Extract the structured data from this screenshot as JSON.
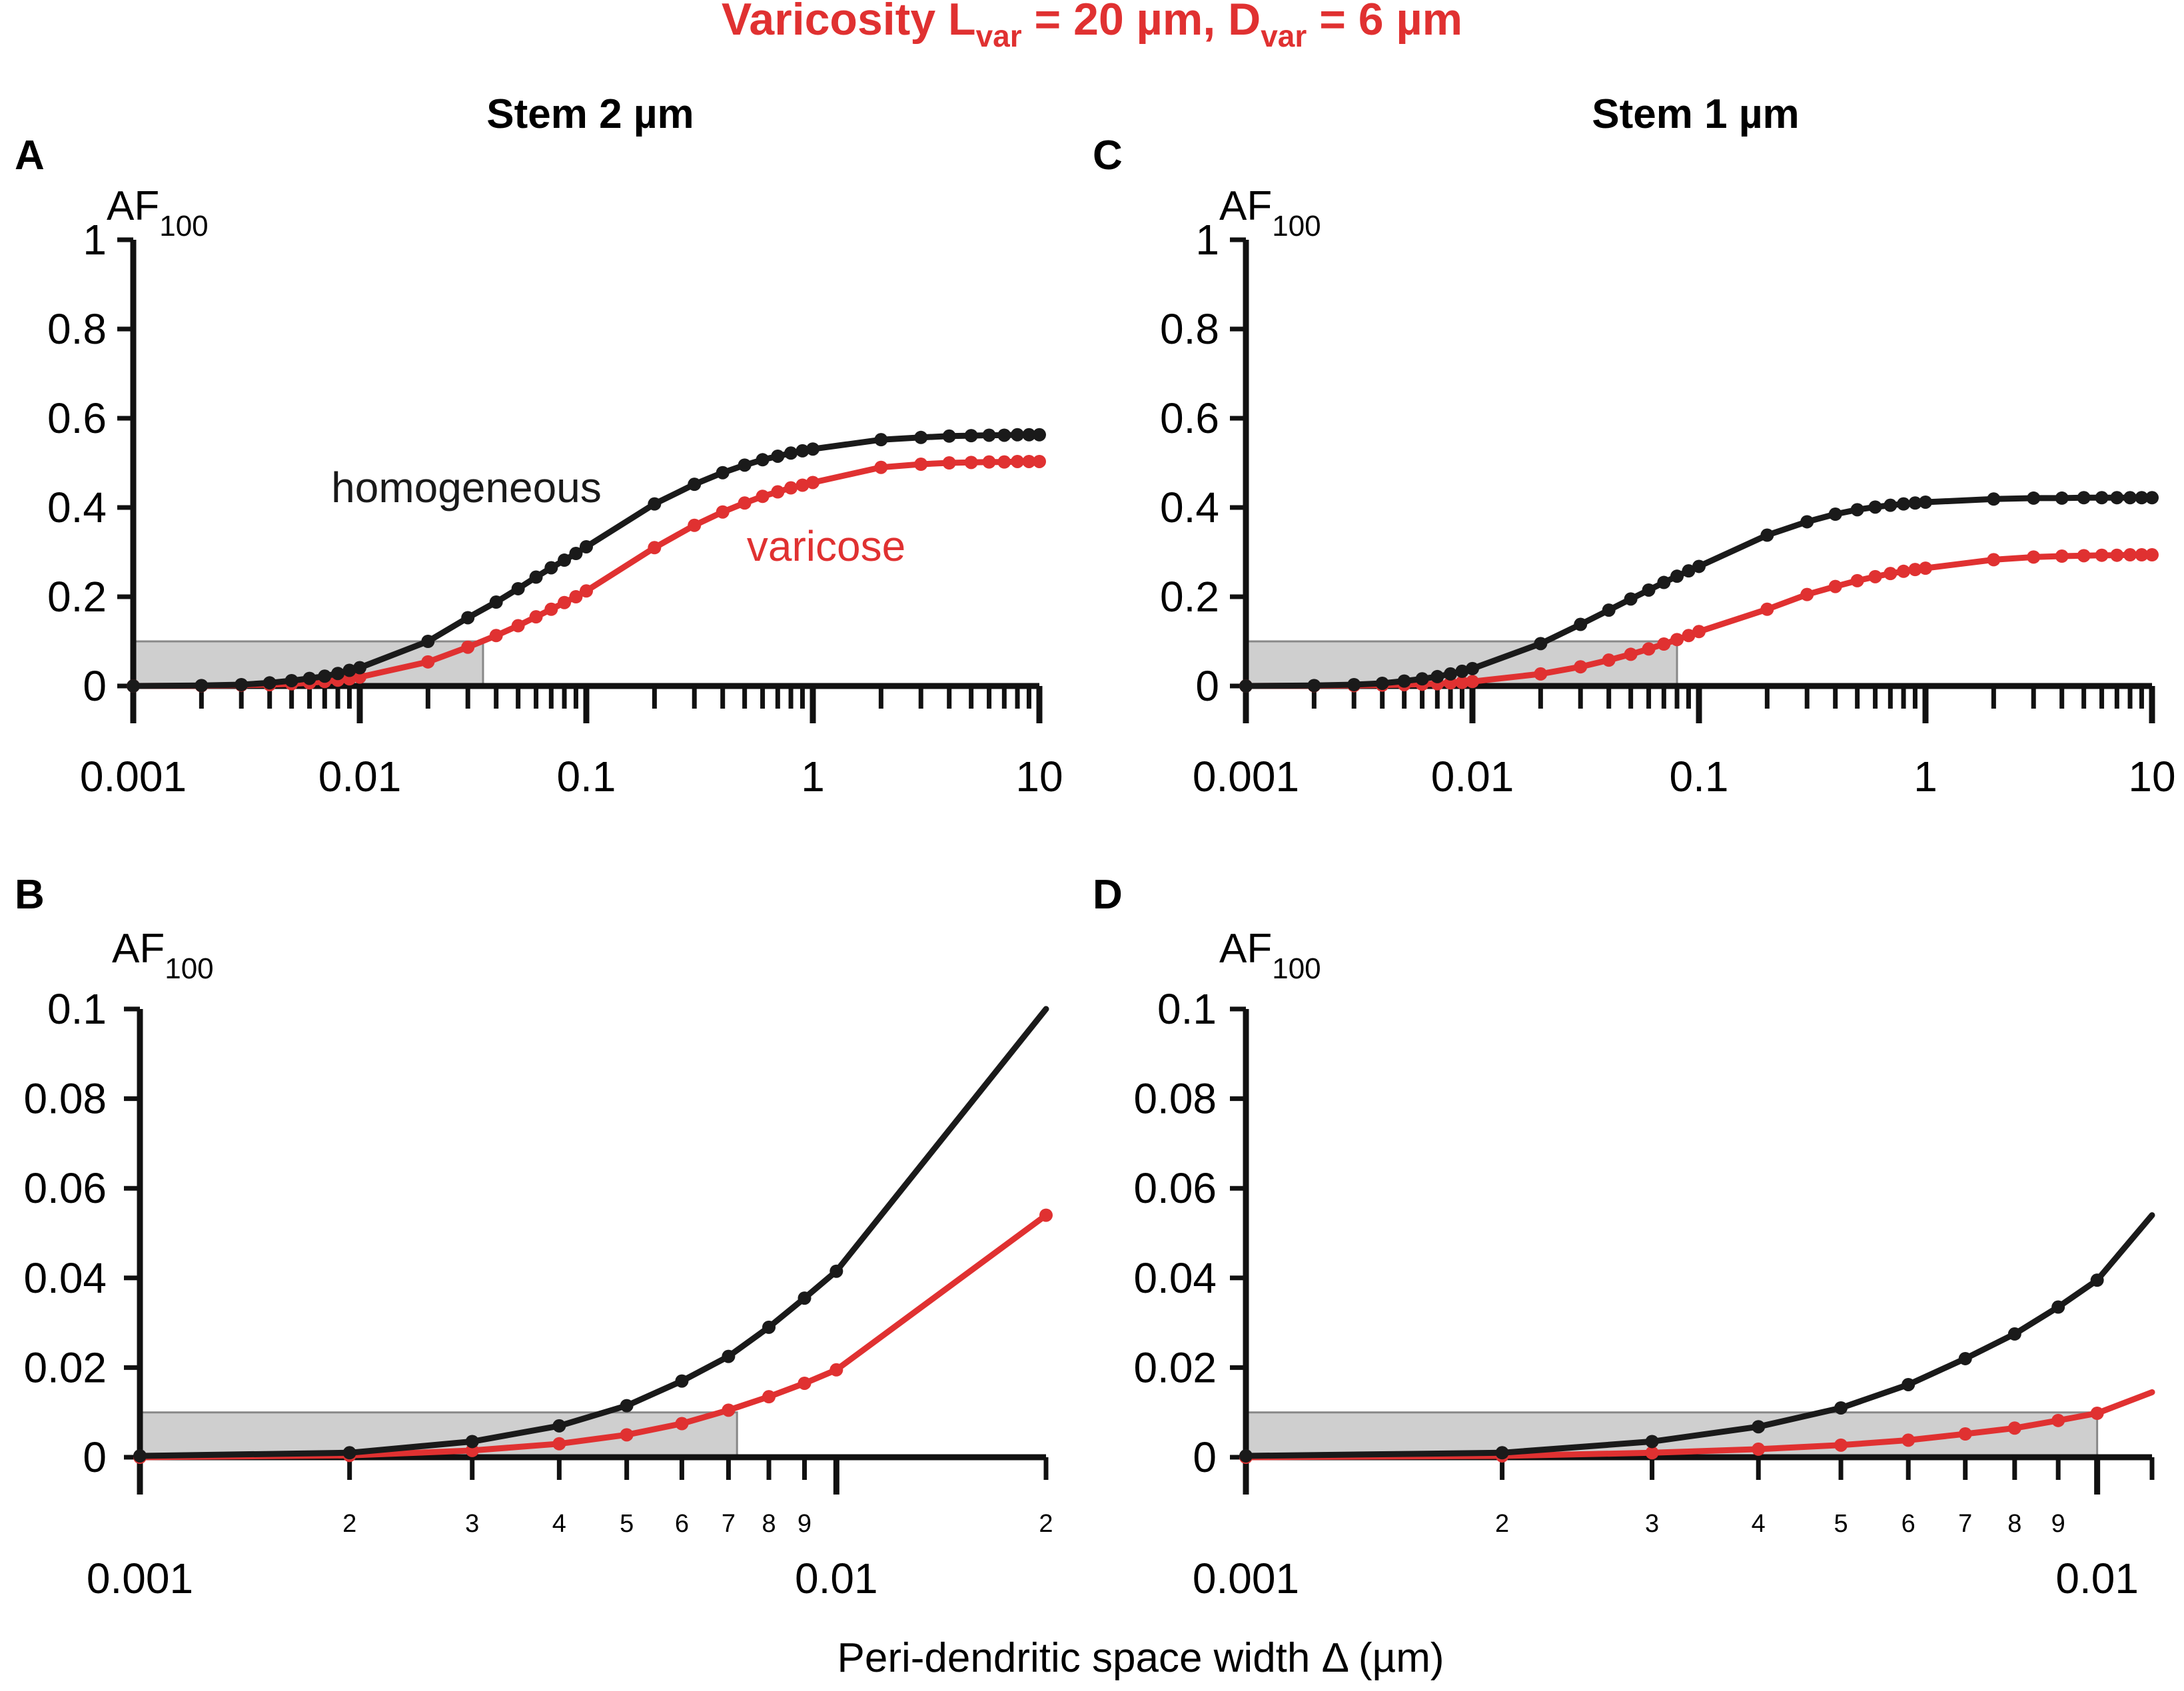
{
  "figure_title": {
    "main": "Varicosity L",
    "sub1": "var",
    "mid": " = 20 µm,  D",
    "sub2": "var",
    "end": " = 6 µm"
  },
  "columns": [
    {
      "title": "Stem 2 µm"
    },
    {
      "title": "Stem 1 µm"
    }
  ],
  "xlabel": "Peri-dendritic space width  Δ  (µm)",
  "legend": {
    "homogeneous": "homogeneous",
    "varicose": "varicose"
  },
  "colors": {
    "homogeneous": "#1a1a1a",
    "varicose": "#e03131",
    "shade_fill": "#cfcfcf",
    "shade_stroke": "#888888"
  },
  "chart_data": [
    {
      "panel": "A",
      "type": "line",
      "scale": "log",
      "ylabel_main": "AF",
      "ylabel_sub": "100",
      "xlim": [
        0.001,
        10
      ],
      "ylim": [
        0,
        1
      ],
      "xticks": [
        {
          "value": 0.001,
          "label": "0.001"
        },
        {
          "value": 0.01,
          "label": "0.01"
        },
        {
          "value": 0.1,
          "label": "0.1"
        },
        {
          "value": 1,
          "label": "1"
        },
        {
          "value": 10,
          "label": "10"
        }
      ],
      "yticks": [
        {
          "value": 0,
          "label": "0"
        },
        {
          "value": 0.2,
          "label": "0.2"
        },
        {
          "value": 0.4,
          "label": "0.4"
        },
        {
          "value": 0.6,
          "label": "0.6"
        },
        {
          "value": 0.8,
          "label": "0.8"
        },
        {
          "value": 1,
          "label": "1"
        }
      ],
      "shaded_region": {
        "x": [
          0.001,
          0.035
        ],
        "y": [
          0,
          0.1
        ]
      },
      "series": [
        {
          "name": "homogeneous",
          "x": [
            0.001,
            0.002,
            0.003,
            0.004,
            0.005,
            0.006,
            0.007,
            0.008,
            0.009,
            0.01,
            0.02,
            0.03,
            0.04,
            0.05,
            0.06,
            0.07,
            0.08,
            0.09,
            0.1,
            0.2,
            0.3,
            0.4,
            0.5,
            0.6,
            0.7,
            0.8,
            0.9,
            1,
            2,
            3,
            4,
            5,
            6,
            7,
            8,
            9,
            10
          ],
          "y": [
            0,
            0.001,
            0.003,
            0.007,
            0.012,
            0.017,
            0.022,
            0.028,
            0.035,
            0.041,
            0.1,
            0.153,
            0.188,
            0.218,
            0.244,
            0.265,
            0.282,
            0.297,
            0.312,
            0.408,
            0.452,
            0.478,
            0.495,
            0.507,
            0.515,
            0.522,
            0.527,
            0.531,
            0.552,
            0.557,
            0.56,
            0.561,
            0.562,
            0.562,
            0.563,
            0.563,
            0.563
          ]
        },
        {
          "name": "varicose",
          "x": [
            0.001,
            0.002,
            0.003,
            0.004,
            0.005,
            0.006,
            0.007,
            0.008,
            0.009,
            0.01,
            0.02,
            0.03,
            0.04,
            0.05,
            0.06,
            0.07,
            0.08,
            0.09,
            0.1,
            0.2,
            0.3,
            0.4,
            0.5,
            0.6,
            0.7,
            0.8,
            0.9,
            1,
            2,
            3,
            4,
            5,
            6,
            7,
            8,
            9,
            10
          ],
          "y": [
            0,
            0.0005,
            0.002,
            0.003,
            0.005,
            0.007,
            0.01,
            0.013,
            0.016,
            0.02,
            0.054,
            0.087,
            0.113,
            0.135,
            0.155,
            0.172,
            0.187,
            0.2,
            0.213,
            0.31,
            0.36,
            0.39,
            0.41,
            0.425,
            0.435,
            0.444,
            0.45,
            0.456,
            0.49,
            0.497,
            0.5,
            0.501,
            0.502,
            0.502,
            0.503,
            0.503,
            0.503
          ]
        }
      ],
      "annotations": [
        {
          "text": "homogeneous",
          "series": "homogeneous"
        },
        {
          "text": "varicose",
          "series": "varicose"
        }
      ]
    },
    {
      "panel": "C",
      "type": "line",
      "scale": "log",
      "ylabel_main": "AF",
      "ylabel_sub": "100",
      "xlim": [
        0.001,
        10
      ],
      "ylim": [
        0,
        1
      ],
      "xticks": [
        {
          "value": 0.001,
          "label": "0.001"
        },
        {
          "value": 0.01,
          "label": "0.01"
        },
        {
          "value": 0.1,
          "label": "0.1"
        },
        {
          "value": 1,
          "label": "1"
        },
        {
          "value": 10,
          "label": "10"
        }
      ],
      "yticks": [
        {
          "value": 0,
          "label": "0"
        },
        {
          "value": 0.2,
          "label": "0.2"
        },
        {
          "value": 0.4,
          "label": "0.4"
        },
        {
          "value": 0.6,
          "label": "0.6"
        },
        {
          "value": 0.8,
          "label": "0.8"
        },
        {
          "value": 1,
          "label": "1"
        }
      ],
      "shaded_region": {
        "x": [
          0.001,
          0.08
        ],
        "y": [
          0,
          0.1
        ]
      },
      "series": [
        {
          "name": "homogeneous",
          "x": [
            0.001,
            0.002,
            0.003,
            0.004,
            0.005,
            0.006,
            0.007,
            0.008,
            0.009,
            0.01,
            0.02,
            0.03,
            0.04,
            0.05,
            0.06,
            0.07,
            0.08,
            0.09,
            0.1,
            0.2,
            0.3,
            0.4,
            0.5,
            0.6,
            0.7,
            0.8,
            0.9,
            1,
            2,
            3,
            4,
            5,
            6,
            7,
            8,
            9,
            10
          ],
          "y": [
            0,
            0.001,
            0.003,
            0.006,
            0.011,
            0.016,
            0.021,
            0.027,
            0.033,
            0.039,
            0.095,
            0.138,
            0.17,
            0.195,
            0.215,
            0.232,
            0.246,
            0.258,
            0.268,
            0.338,
            0.368,
            0.385,
            0.395,
            0.401,
            0.405,
            0.408,
            0.41,
            0.412,
            0.419,
            0.421,
            0.421,
            0.422,
            0.422,
            0.422,
            0.422,
            0.422,
            0.422
          ]
        },
        {
          "name": "varicose",
          "x": [
            0.001,
            0.002,
            0.003,
            0.004,
            0.005,
            0.006,
            0.007,
            0.008,
            0.009,
            0.01,
            0.02,
            0.03,
            0.04,
            0.05,
            0.06,
            0.07,
            0.08,
            0.09,
            0.1,
            0.2,
            0.3,
            0.4,
            0.5,
            0.6,
            0.7,
            0.8,
            0.9,
            1,
            2,
            3,
            4,
            5,
            6,
            7,
            8,
            9,
            10
          ],
          "y": [
            0,
            0.0005,
            0.001,
            0.002,
            0.003,
            0.004,
            0.005,
            0.007,
            0.008,
            0.01,
            0.027,
            0.043,
            0.058,
            0.071,
            0.083,
            0.094,
            0.104,
            0.113,
            0.122,
            0.172,
            0.205,
            0.223,
            0.236,
            0.245,
            0.252,
            0.257,
            0.261,
            0.264,
            0.283,
            0.289,
            0.291,
            0.292,
            0.293,
            0.293,
            0.294,
            0.294,
            0.294
          ]
        }
      ]
    },
    {
      "panel": "B",
      "type": "line",
      "scale": "log",
      "ylabel_main": "AF",
      "ylabel_sub": "100",
      "xlim": [
        0.001,
        0.02
      ],
      "ylim": [
        0,
        0.1
      ],
      "xticks_minor": [
        {
          "value": 0.002,
          "label": "2"
        },
        {
          "value": 0.003,
          "label": "3"
        },
        {
          "value": 0.004,
          "label": "4"
        },
        {
          "value": 0.005,
          "label": "5"
        },
        {
          "value": 0.006,
          "label": "6"
        },
        {
          "value": 0.007,
          "label": "7"
        },
        {
          "value": 0.008,
          "label": "8"
        },
        {
          "value": 0.009,
          "label": "9"
        },
        {
          "value": 0.02,
          "label": "2"
        }
      ],
      "xticks": [
        {
          "value": 0.001,
          "label": "0.001"
        },
        {
          "value": 0.01,
          "label": "0.01"
        }
      ],
      "yticks": [
        {
          "value": 0,
          "label": "0"
        },
        {
          "value": 0.02,
          "label": "0.02"
        },
        {
          "value": 0.04,
          "label": "0.04"
        },
        {
          "value": 0.06,
          "label": "0.06"
        },
        {
          "value": 0.08,
          "label": "0.08"
        },
        {
          "value": 0.1,
          "label": "0.1"
        }
      ],
      "shaded_region": {
        "x": [
          0.001,
          0.0072
        ],
        "y": [
          0,
          0.01
        ]
      },
      "series": [
        {
          "name": "homogeneous",
          "x": [
            0.001,
            0.002,
            0.003,
            0.004,
            0.005,
            0.006,
            0.007,
            0.008,
            0.009,
            0.01,
            0.02
          ],
          "y": [
            0.0003,
            0.001,
            0.0035,
            0.007,
            0.0115,
            0.017,
            0.0225,
            0.029,
            0.0355,
            0.0415,
            0.1
          ],
          "markers_upto": 0.01
        },
        {
          "name": "varicose",
          "x": [
            0.001,
            0.002,
            0.003,
            0.004,
            0.005,
            0.006,
            0.007,
            0.008,
            0.009,
            0.01,
            0.02
          ],
          "y": [
            0,
            0.0004,
            0.0015,
            0.003,
            0.005,
            0.0075,
            0.0105,
            0.0135,
            0.0165,
            0.0195,
            0.054
          ],
          "markers_upto": 0.02
        }
      ]
    },
    {
      "panel": "D",
      "type": "line",
      "scale": "log",
      "ylabel_main": "AF",
      "ylabel_sub": "100",
      "xlim": [
        0.001,
        0.0116
      ],
      "ylim": [
        0,
        0.1
      ],
      "xticks_minor": [
        {
          "value": 0.002,
          "label": "2"
        },
        {
          "value": 0.003,
          "label": "3"
        },
        {
          "value": 0.004,
          "label": "4"
        },
        {
          "value": 0.005,
          "label": "5"
        },
        {
          "value": 0.006,
          "label": "6"
        },
        {
          "value": 0.007,
          "label": "7"
        },
        {
          "value": 0.008,
          "label": "8"
        },
        {
          "value": 0.009,
          "label": "9"
        }
      ],
      "xticks": [
        {
          "value": 0.001,
          "label": "0.001"
        },
        {
          "value": 0.01,
          "label": "0.01"
        }
      ],
      "yticks": [
        {
          "value": 0,
          "label": "0"
        },
        {
          "value": 0.02,
          "label": "0.02"
        },
        {
          "value": 0.04,
          "label": "0.04"
        },
        {
          "value": 0.06,
          "label": "0.06"
        },
        {
          "value": 0.08,
          "label": "0.08"
        },
        {
          "value": 0.1,
          "label": "0.1"
        }
      ],
      "shaded_region": {
        "x": [
          0.001,
          0.01
        ],
        "y": [
          0,
          0.01
        ]
      },
      "series": [
        {
          "name": "homogeneous",
          "x": [
            0.001,
            0.002,
            0.003,
            0.004,
            0.005,
            0.006,
            0.007,
            0.008,
            0.009,
            0.01,
            0.0116
          ],
          "y": [
            0.0003,
            0.001,
            0.0035,
            0.0068,
            0.011,
            0.0162,
            0.022,
            0.0275,
            0.0335,
            0.0395,
            0.054
          ],
          "markers_upto": 0.01
        },
        {
          "name": "varicose",
          "x": [
            0.001,
            0.002,
            0.003,
            0.004,
            0.005,
            0.006,
            0.007,
            0.008,
            0.009,
            0.01,
            0.0116
          ],
          "y": [
            0,
            0.0003,
            0.001,
            0.0018,
            0.0027,
            0.0038,
            0.0052,
            0.0065,
            0.0082,
            0.0098,
            0.0145
          ],
          "markers_upto": 0.01
        }
      ]
    }
  ]
}
